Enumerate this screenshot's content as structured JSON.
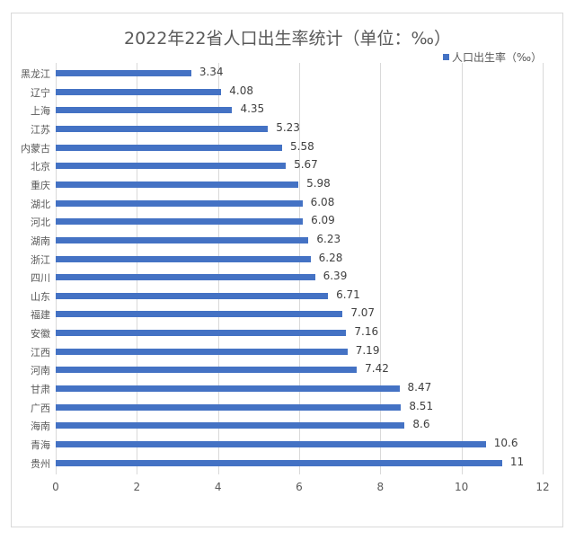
{
  "chart_data": {
    "type": "bar",
    "orientation": "horizontal",
    "title": "2022年22省人口出生率统计（单位：‰）",
    "xlabel": "",
    "ylabel": "",
    "xlim": [
      0,
      12
    ],
    "xticks": [
      "0",
      "2",
      "4",
      "6",
      "8",
      "10",
      "12"
    ],
    "grid": true,
    "legend_position": "top-right",
    "categories": [
      "黑龙江",
      "辽宁",
      "上海",
      "江苏",
      "内蒙古",
      "北京",
      "重庆",
      "湖北",
      "河北",
      "湖南",
      "浙江",
      "四川",
      "山东",
      "福建",
      "安徽",
      "江西",
      "河南",
      "甘肃",
      "广西",
      "海南",
      "青海",
      "贵州"
    ],
    "series": [
      {
        "name": "人口出生率（‰）",
        "color": "#4472c4",
        "values": [
          3.34,
          4.08,
          4.35,
          5.23,
          5.58,
          5.67,
          5.98,
          6.08,
          6.09,
          6.23,
          6.28,
          6.39,
          6.71,
          7.07,
          7.16,
          7.19,
          7.42,
          8.47,
          8.51,
          8.6,
          10.6,
          11
        ]
      }
    ],
    "value_labels": [
      "3.34",
      "4.08",
      "4.35",
      "5.23",
      "5.58",
      "5.67",
      "5.98",
      "6.08",
      "6.09",
      "6.23",
      "6.28",
      "6.39",
      "6.71",
      "7.07",
      "7.16",
      "7.19",
      "7.42",
      "8.47",
      "8.51",
      "8.6",
      "10.6",
      "11"
    ]
  }
}
